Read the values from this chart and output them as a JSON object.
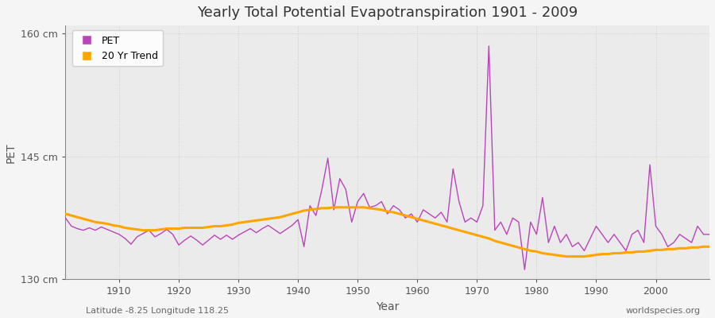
{
  "title": "Yearly Total Potential Evapotranspiration 1901 - 2009",
  "xlabel": "Year",
  "ylabel": "PET",
  "bottom_left": "Latitude -8.25 Longitude 118.25",
  "bottom_right": "worldspecies.org",
  "ylim": [
    130,
    161
  ],
  "yticks": [
    130,
    145,
    160
  ],
  "ytick_labels": [
    "130 cm",
    "145 cm",
    "160 cm"
  ],
  "pet_color": "#bb44bb",
  "trend_color": "#ffa500",
  "bg_color": "#e8e8e8",
  "plot_bg_color": "#f0f0f0",
  "years": [
    1901,
    1902,
    1903,
    1904,
    1905,
    1906,
    1907,
    1908,
    1909,
    1910,
    1911,
    1912,
    1913,
    1914,
    1915,
    1916,
    1917,
    1918,
    1919,
    1920,
    1921,
    1922,
    1923,
    1924,
    1925,
    1926,
    1927,
    1928,
    1929,
    1930,
    1931,
    1932,
    1933,
    1934,
    1935,
    1936,
    1937,
    1938,
    1939,
    1940,
    1941,
    1942,
    1943,
    1944,
    1945,
    1946,
    1947,
    1948,
    1949,
    1950,
    1951,
    1952,
    1953,
    1954,
    1955,
    1956,
    1957,
    1958,
    1959,
    1960,
    1961,
    1962,
    1963,
    1964,
    1965,
    1966,
    1967,
    1968,
    1969,
    1970,
    1971,
    1972,
    1973,
    1974,
    1975,
    1976,
    1977,
    1978,
    1979,
    1980,
    1981,
    1982,
    1983,
    1984,
    1985,
    1986,
    1987,
    1988,
    1989,
    1990,
    1991,
    1992,
    1993,
    1994,
    1995,
    1996,
    1997,
    1998,
    1999,
    2000,
    2001,
    2002,
    2003,
    2004,
    2005,
    2006,
    2007,
    2008,
    2009
  ],
  "pet_values": [
    137.5,
    136.5,
    136.2,
    136.0,
    136.3,
    136.0,
    136.4,
    136.1,
    135.8,
    135.5,
    135.0,
    134.3,
    135.2,
    135.6,
    136.0,
    135.2,
    135.6,
    136.1,
    135.5,
    134.2,
    134.8,
    135.3,
    134.8,
    134.2,
    134.8,
    135.4,
    134.9,
    135.4,
    134.9,
    135.4,
    135.8,
    136.2,
    135.7,
    136.2,
    136.6,
    136.1,
    135.6,
    136.1,
    136.6,
    137.3,
    134.0,
    139.0,
    137.8,
    141.0,
    144.8,
    138.5,
    142.3,
    141.0,
    137.0,
    139.5,
    140.5,
    138.8,
    139.0,
    139.5,
    138.0,
    139.0,
    138.5,
    137.5,
    138.0,
    137.0,
    138.5,
    138.0,
    137.5,
    138.2,
    137.0,
    143.5,
    139.5,
    137.0,
    137.5,
    137.0,
    139.0,
    158.5,
    136.0,
    137.0,
    135.5,
    137.5,
    137.0,
    131.2,
    137.0,
    135.5,
    140.0,
    134.5,
    136.5,
    134.5,
    135.5,
    134.0,
    134.5,
    133.5,
    135.0,
    136.5,
    135.5,
    134.5,
    135.5,
    134.5,
    133.5,
    135.5,
    136.0,
    134.5,
    144.0,
    136.5,
    135.5,
    134.0,
    134.5,
    135.5,
    135.0,
    134.5,
    136.5,
    135.5,
    135.5
  ],
  "trend_values": [
    138.0,
    137.8,
    137.6,
    137.4,
    137.2,
    137.0,
    136.9,
    136.8,
    136.6,
    136.5,
    136.3,
    136.2,
    136.1,
    136.0,
    136.0,
    136.0,
    136.1,
    136.2,
    136.2,
    136.2,
    136.3,
    136.3,
    136.3,
    136.3,
    136.4,
    136.5,
    136.5,
    136.6,
    136.7,
    136.9,
    137.0,
    137.1,
    137.2,
    137.3,
    137.4,
    137.5,
    137.6,
    137.8,
    138.0,
    138.2,
    138.4,
    138.5,
    138.6,
    138.7,
    138.7,
    138.8,
    138.8,
    138.8,
    138.8,
    138.8,
    138.8,
    138.7,
    138.6,
    138.5,
    138.3,
    138.2,
    138.0,
    137.8,
    137.6,
    137.4,
    137.2,
    137.0,
    136.8,
    136.6,
    136.4,
    136.2,
    136.0,
    135.8,
    135.6,
    135.4,
    135.2,
    135.0,
    134.7,
    134.5,
    134.3,
    134.1,
    133.9,
    133.7,
    133.5,
    133.4,
    133.2,
    133.1,
    133.0,
    132.9,
    132.8,
    132.8,
    132.8,
    132.8,
    132.9,
    133.0,
    133.1,
    133.1,
    133.2,
    133.2,
    133.3,
    133.3,
    133.4,
    133.4,
    133.5,
    133.6,
    133.6,
    133.7,
    133.7,
    133.8,
    133.8,
    133.9,
    133.9,
    134.0,
    134.0
  ]
}
